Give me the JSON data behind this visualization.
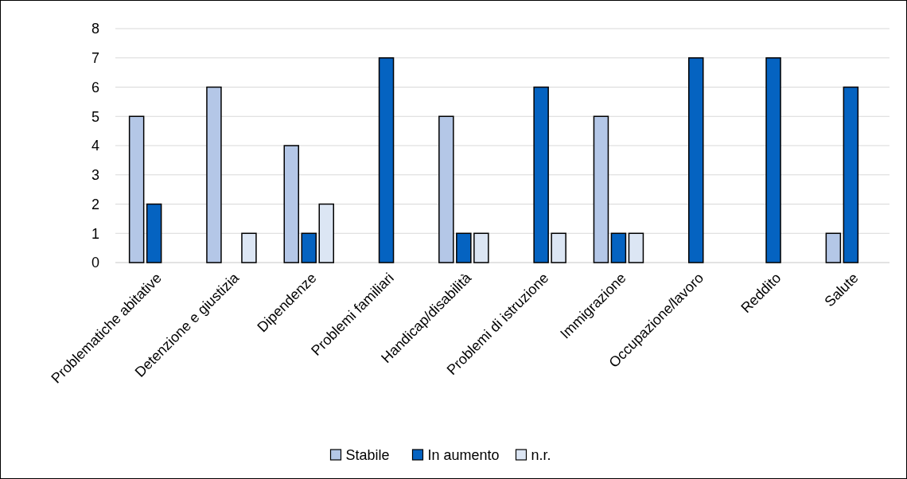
{
  "chart_data": {
    "type": "bar",
    "categories": [
      "Problematiche abitative",
      "Detenzione e giustizia",
      "Dipendenze",
      "Problemi familiari",
      "Handicap/disabilità",
      "Problemi di istruzione",
      "Immigrazione",
      "Occupazione/lavoro",
      "Reddito",
      "Salute"
    ],
    "series": [
      {
        "name": "Stabile",
        "color": "#b4c7e7",
        "values": [
          5,
          6,
          4,
          null,
          5,
          null,
          5,
          null,
          null,
          1
        ]
      },
      {
        "name": "In aumento",
        "color": "#0563c1",
        "values": [
          2,
          null,
          1,
          7,
          1,
          6,
          1,
          7,
          7,
          6
        ]
      },
      {
        "name": "n.r.",
        "color": "#dce6f4",
        "values": [
          null,
          1,
          2,
          null,
          1,
          1,
          1,
          null,
          null,
          null
        ]
      }
    ],
    "ylim": [
      0,
      8
    ],
    "yticks": [
      0,
      1,
      2,
      3,
      4,
      5,
      6,
      7,
      8
    ],
    "grid": "y",
    "legend": "bottom"
  }
}
